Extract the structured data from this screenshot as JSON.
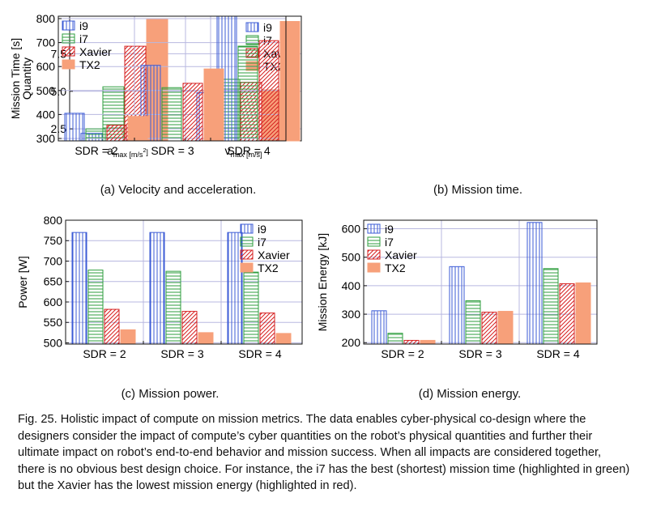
{
  "colors": {
    "i9": "#3b5bd6",
    "i7": "#2e9e3e",
    "Xavier": "#d62020",
    "TX2": "#f7a07a",
    "grid": "#b8b8e0"
  },
  "patterns": {
    "i9": "vertical-lines",
    "i7": "horizontal-lines",
    "Xavier": "diagonal-lines",
    "TX2": "solid"
  },
  "panels": [
    {
      "subcaption": "(a) Velocity and acceleration.",
      "chart_data": {
        "type": "bar",
        "ylabel": "Quantity",
        "ylim": [
          1.7,
          10.0
        ],
        "yticks": [
          2.5,
          5.0,
          7.5
        ],
        "ytick_labels": [
          "2.5",
          "5.0",
          "7.5"
        ],
        "groups": [
          {
            "main": "a",
            "sub": "max [m/s",
            "sup": "2",
            "tail": "]"
          },
          {
            "main": "v",
            "sub": "max [m/s]",
            "sup": "",
            "tail": ""
          }
        ],
        "series": [
          {
            "name": "i9",
            "values": [
              2.2,
              4.9
            ]
          },
          {
            "name": "i7",
            "values": [
              5.3,
              5.8
            ]
          },
          {
            "name": "Xavier",
            "values": [
              8.0,
              5.6
            ]
          },
          {
            "name": "TX2",
            "values": [
              9.8,
              5.1
            ]
          }
        ],
        "legend": "top-right",
        "grid": true
      }
    },
    {
      "subcaption": "(b) Mission time.",
      "chart_data": {
        "type": "bar",
        "ylabel": "Mission Time [s]",
        "ylim": [
          290,
          810
        ],
        "yticks": [
          300,
          400,
          500,
          600,
          700,
          800
        ],
        "ytick_labels": [
          "300",
          "400",
          "500",
          "600",
          "700",
          "800"
        ],
        "categories": [
          "SDR = 2",
          "SDR = 3",
          "SDR = 4"
        ],
        "series": [
          {
            "name": "i9",
            "values": [
              405,
              605,
              810
            ]
          },
          {
            "name": "i7",
            "values": [
              340,
              512,
              685
            ]
          },
          {
            "name": "Xavier",
            "values": [
              355,
              530,
              708
            ]
          },
          {
            "name": "TX2",
            "values": [
              392,
              590,
              788
            ]
          }
        ],
        "legend": "top-left",
        "grid": true
      }
    },
    {
      "subcaption": "(c) Mission power.",
      "chart_data": {
        "type": "bar",
        "ylabel": "Power [W]",
        "ylim": [
          497,
          800
        ],
        "yticks": [
          500,
          550,
          600,
          650,
          700,
          750,
          800
        ],
        "ytick_labels": [
          "500",
          "550",
          "600",
          "650",
          "700",
          "750",
          "800"
        ],
        "categories": [
          "SDR = 2",
          "SDR = 3",
          "SDR = 4"
        ],
        "series": [
          {
            "name": "i9",
            "values": [
              770,
              770,
              770
            ]
          },
          {
            "name": "i7",
            "values": [
              678,
              675,
              673
            ]
          },
          {
            "name": "Xavier",
            "values": [
              582,
              577,
              573
            ]
          },
          {
            "name": "TX2",
            "values": [
              532,
              525,
              523
            ]
          }
        ],
        "legend": "top-right",
        "grid": true
      }
    },
    {
      "subcaption": "(d) Mission energy.",
      "chart_data": {
        "type": "bar",
        "ylabel": "Mission Energy [kJ]",
        "ylim": [
          195,
          630
        ],
        "yticks": [
          200,
          300,
          400,
          500,
          600
        ],
        "ytick_labels": [
          "200",
          "300",
          "400",
          "500",
          "600"
        ],
        "categories": [
          "SDR = 2",
          "SDR = 3",
          "SDR = 4"
        ],
        "series": [
          {
            "name": "i9",
            "values": [
              312,
              467,
              622
            ]
          },
          {
            "name": "i7",
            "values": [
              233,
              347,
              460
            ]
          },
          {
            "name": "Xavier",
            "values": [
              208,
              307,
              407
            ]
          },
          {
            "name": "TX2",
            "values": [
              208,
              310,
              410
            ]
          }
        ],
        "legend": "top-left",
        "grid": true
      }
    }
  ],
  "caption": "Fig. 25.  Holistic impact of compute on mission metrics. The data enables cyber-physical co-design where the designers consider the impact of compute’s cyber quantities on the robot’s physical quantities and further their ultimate impact on robot’s end-to-end behavior and mission success. When all impacts are considered together, there is no obvious best design choice. For instance, the i7 has the best (shortest) mission time (highlighted in green) but the Xavier has the lowest mission energy (highlighted in red)."
}
